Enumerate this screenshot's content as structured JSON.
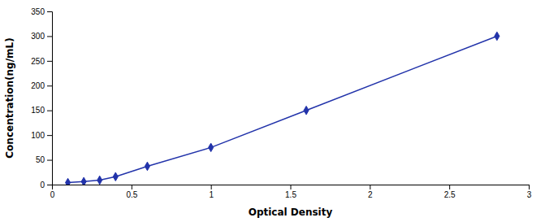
{
  "chart_data": {
    "type": "line",
    "x": [
      0.1,
      0.2,
      0.3,
      0.4,
      0.6,
      1.0,
      1.6,
      2.8
    ],
    "values": [
      4,
      6,
      9,
      16,
      37,
      75,
      150,
      300
    ],
    "color": "#2233aa",
    "marker": "diamond",
    "xlabel": "Optical Density",
    "ylabel": "Concentration(ng/mL)",
    "xlim": [
      0,
      3.0
    ],
    "ylim": [
      0,
      350
    ],
    "xticks": [
      0,
      0.5,
      1,
      1.5,
      2,
      2.5,
      3
    ],
    "yticks": [
      0,
      50,
      100,
      150,
      200,
      250,
      300,
      350
    ]
  }
}
